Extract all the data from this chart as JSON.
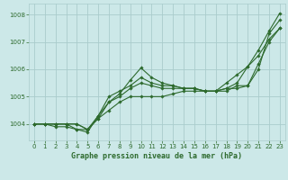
{
  "title": "Graphe pression niveau de la mer (hPa)",
  "bg_color": "#cce8e8",
  "grid_color": "#aacccc",
  "line_color": "#2d6a2d",
  "xlim": [
    -0.5,
    23.5
  ],
  "ylim": [
    1003.4,
    1008.4
  ],
  "yticks": [
    1004,
    1005,
    1006,
    1007,
    1008
  ],
  "xticks": [
    0,
    1,
    2,
    3,
    4,
    5,
    6,
    7,
    8,
    9,
    10,
    11,
    12,
    13,
    14,
    15,
    16,
    17,
    18,
    19,
    20,
    21,
    22,
    23
  ],
  "series": [
    [
      1004.0,
      1004.0,
      1004.0,
      1004.0,
      1004.0,
      1003.8,
      1004.2,
      1004.5,
      1004.8,
      1005.0,
      1005.0,
      1005.0,
      1005.0,
      1005.1,
      1005.2,
      1005.2,
      1005.2,
      1005.2,
      1005.2,
      1005.4,
      1005.4,
      1006.0,
      1007.3,
      1007.8
    ],
    [
      1004.0,
      1004.0,
      1003.9,
      1003.9,
      1003.8,
      1003.7,
      1004.3,
      1004.8,
      1005.1,
      1005.6,
      1006.05,
      1005.7,
      1005.5,
      1005.4,
      1005.3,
      1005.3,
      1005.2,
      1005.2,
      1005.3,
      1005.5,
      1006.1,
      1006.7,
      1007.4,
      1008.05
    ],
    [
      1004.0,
      1004.0,
      1004.0,
      1004.0,
      1004.0,
      1003.8,
      1004.2,
      1004.8,
      1005.0,
      1005.3,
      1005.5,
      1005.4,
      1005.3,
      1005.3,
      1005.3,
      1005.3,
      1005.2,
      1005.2,
      1005.5,
      1005.8,
      1006.1,
      1006.5,
      1007.1,
      1007.5
    ],
    [
      1004.0,
      1004.0,
      1004.0,
      1004.0,
      1003.8,
      1003.8,
      1004.3,
      1005.0,
      1005.2,
      1005.4,
      1005.7,
      1005.5,
      1005.4,
      1005.4,
      1005.3,
      1005.3,
      1005.2,
      1005.2,
      1005.3,
      1005.3,
      1005.4,
      1006.2,
      1007.0,
      1007.5
    ]
  ]
}
